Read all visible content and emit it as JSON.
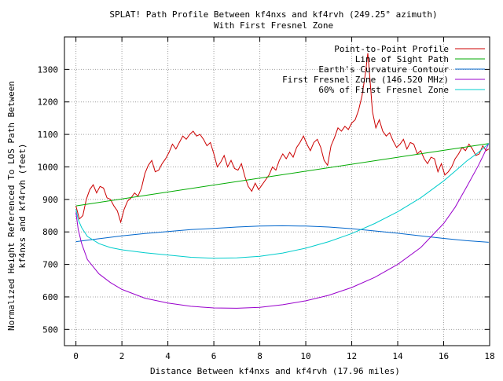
{
  "chart_data": {
    "type": "line",
    "title": "SPLAT! Path Profile Between kf4nxs and kf4rvh (249.25° azimuth)",
    "subtitle": "With First Fresnel Zone",
    "xlabel": "Distance Between kf4nxs and kf4rvh (17.96 miles)",
    "ylabel_line1": "Normalized Height Referenced To LOS Path Between",
    "ylabel_line2": "kf4nxs and kf4rvh (feet)",
    "xlim": [
      -0.5,
      18
    ],
    "ylim": [
      450,
      1400
    ],
    "x_ticks": [
      0,
      2,
      4,
      6,
      8,
      10,
      12,
      14,
      16,
      18
    ],
    "y_ticks": [
      500,
      600,
      700,
      800,
      900,
      1000,
      1100,
      1200,
      1300
    ],
    "grid": true,
    "legend_position": "top-right",
    "series": [
      {
        "name": "Point-to-Point Profile",
        "color": "#cc0000",
        "x": [
          0,
          0.15,
          0.3,
          0.45,
          0.6,
          0.75,
          0.9,
          1.05,
          1.2,
          1.35,
          1.5,
          1.65,
          1.8,
          1.95,
          2.1,
          2.25,
          2.4,
          2.55,
          2.7,
          2.85,
          3.0,
          3.15,
          3.3,
          3.45,
          3.6,
          3.75,
          3.9,
          4.05,
          4.2,
          4.35,
          4.5,
          4.65,
          4.8,
          4.95,
          5.1,
          5.25,
          5.4,
          5.55,
          5.7,
          5.85,
          6.0,
          6.15,
          6.3,
          6.45,
          6.6,
          6.75,
          6.9,
          7.05,
          7.2,
          7.35,
          7.5,
          7.65,
          7.8,
          7.95,
          8.1,
          8.25,
          8.4,
          8.55,
          8.7,
          8.85,
          9.0,
          9.15,
          9.3,
          9.45,
          9.6,
          9.75,
          9.9,
          10.05,
          10.2,
          10.35,
          10.5,
          10.65,
          10.8,
          10.95,
          11.1,
          11.25,
          11.4,
          11.55,
          11.7,
          11.85,
          12.0,
          12.15,
          12.3,
          12.45,
          12.6,
          12.7,
          12.8,
          12.9,
          13.05,
          13.2,
          13.35,
          13.5,
          13.65,
          13.8,
          13.95,
          14.1,
          14.25,
          14.4,
          14.55,
          14.7,
          14.85,
          15.0,
          15.15,
          15.3,
          15.45,
          15.6,
          15.75,
          15.9,
          16.05,
          16.2,
          16.35,
          16.5,
          16.65,
          16.8,
          16.95,
          17.1,
          17.25,
          17.4,
          17.55,
          17.7,
          17.85,
          17.96
        ],
        "y": [
          880,
          840,
          850,
          900,
          930,
          945,
          920,
          940,
          935,
          905,
          900,
          880,
          865,
          830,
          870,
          895,
          905,
          920,
          910,
          935,
          980,
          1005,
          1020,
          985,
          990,
          1010,
          1025,
          1045,
          1070,
          1055,
          1075,
          1095,
          1085,
          1100,
          1110,
          1095,
          1100,
          1085,
          1065,
          1075,
          1040,
          1000,
          1015,
          1035,
          1000,
          1020,
          995,
          990,
          1010,
          970,
          940,
          925,
          950,
          930,
          945,
          960,
          975,
          1000,
          990,
          1020,
          1040,
          1025,
          1045,
          1030,
          1060,
          1075,
          1095,
          1070,
          1050,
          1075,
          1085,
          1060,
          1020,
          1005,
          1065,
          1090,
          1120,
          1110,
          1125,
          1115,
          1135,
          1145,
          1175,
          1220,
          1290,
          1350,
          1265,
          1170,
          1120,
          1145,
          1110,
          1095,
          1105,
          1080,
          1060,
          1070,
          1085,
          1055,
          1075,
          1070,
          1040,
          1050,
          1025,
          1010,
          1030,
          1025,
          985,
          1010,
          975,
          985,
          1000,
          1025,
          1040,
          1060,
          1050,
          1070,
          1055,
          1035,
          1040,
          1065,
          1050,
          1055
        ]
      },
      {
        "name": "Line of Sight Path",
        "color": "#00aa00",
        "x": [
          0,
          17.96
        ],
        "y": [
          880,
          1072
        ]
      },
      {
        "name": "Earth's Curvature Contour",
        "color": "#0066cc",
        "x": [
          0,
          1,
          2,
          3,
          4,
          5,
          6,
          7,
          8,
          8.98,
          10,
          11,
          12,
          13,
          14,
          15,
          16,
          17,
          17.96
        ],
        "y": [
          770,
          779,
          788,
          795,
          801,
          807,
          811,
          815,
          818,
          819,
          818,
          815,
          810,
          803,
          796,
          788,
          780,
          773,
          768
        ]
      },
      {
        "name": "First Fresnel Zone (146.520 MHz)",
        "color": "#9900cc",
        "x": [
          0,
          0.1,
          0.25,
          0.5,
          1,
          1.5,
          2,
          3,
          4,
          5,
          6,
          7,
          8,
          9,
          10,
          11,
          12,
          13,
          14,
          15,
          16,
          16.5,
          17,
          17.5,
          17.75,
          17.96
        ],
        "y": [
          860,
          808,
          764,
          715,
          671,
          644,
          623,
          596,
          581,
          571,
          566,
          565,
          568,
          576,
          588,
          605,
          629,
          660,
          700,
          752,
          826,
          876,
          939,
          1003,
          1039,
          1072
        ]
      },
      {
        "name": "60% of First Fresnel Zone",
        "color": "#00cccc",
        "x": [
          0,
          0.1,
          0.25,
          0.5,
          1,
          1.5,
          2,
          3,
          4,
          5,
          6,
          7,
          8,
          9,
          10,
          11,
          12,
          13,
          14,
          15,
          16,
          16.5,
          17,
          17.5,
          17.75,
          17.96
        ],
        "y": [
          870,
          838,
          813,
          786,
          764,
          752,
          745,
          736,
          729,
          722,
          719,
          720,
          725,
          735,
          750,
          770,
          795,
          826,
          862,
          905,
          957,
          987,
          1018,
          1044,
          1059,
          1072
        ]
      }
    ]
  }
}
